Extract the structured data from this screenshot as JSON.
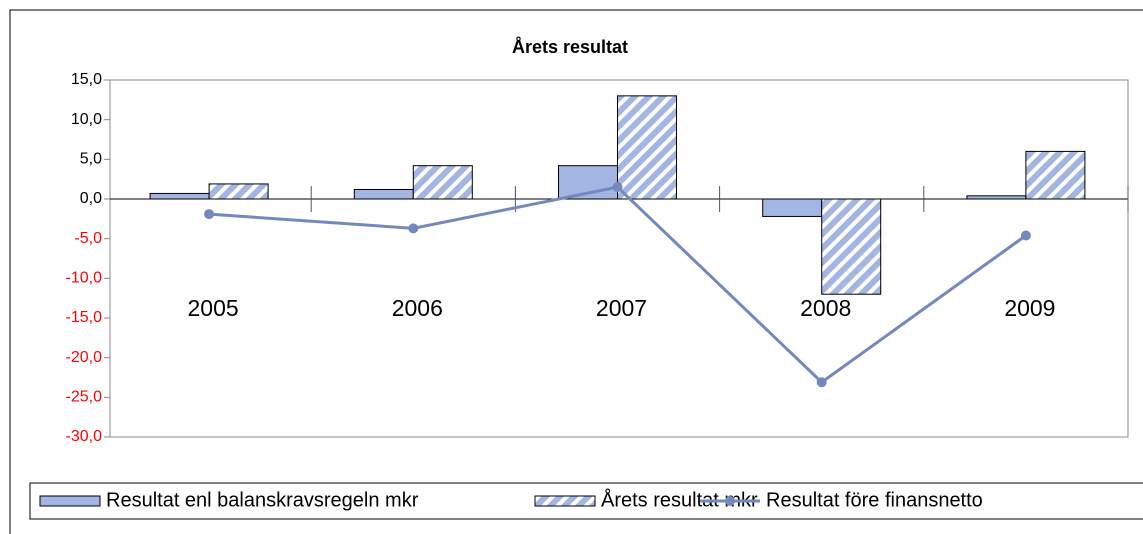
{
  "chart_data": {
    "type": "bar",
    "title": "Årets resultat",
    "categories": [
      "2005",
      "2006",
      "2007",
      "2008",
      "2009"
    ],
    "series": [
      {
        "name": "Resultat enl balanskravsregeln mkr",
        "type": "bar",
        "color": "#a3b5e3",
        "values": [
          0.7,
          1.2,
          4.2,
          -2.2,
          0.4
        ]
      },
      {
        "name": "Årets resultat mkr",
        "type": "bar",
        "hatch": true,
        "color": "#a3b5e3",
        "values": [
          1.9,
          4.2,
          13.0,
          -12.0,
          6.0
        ]
      },
      {
        "name": "Resultat före finansnetto",
        "type": "line",
        "color": "#7389bd",
        "values": [
          -1.9,
          -3.7,
          1.5,
          -23.1,
          -4.6
        ]
      }
    ],
    "ylim": [
      -30,
      15
    ],
    "yticks": [
      {
        "value": 15,
        "label": "15,0"
      },
      {
        "value": 10,
        "label": "10,0"
      },
      {
        "value": 5,
        "label": "5,0"
      },
      {
        "value": 0,
        "label": "0,0"
      },
      {
        "value": -5,
        "label": "-5,0"
      },
      {
        "value": -10,
        "label": "-10,0"
      },
      {
        "value": -15,
        "label": "-15,0"
      },
      {
        "value": -20,
        "label": "-20,0"
      },
      {
        "value": -25,
        "label": "-25,0"
      },
      {
        "value": -30,
        "label": "-30,0"
      }
    ],
    "negative_tick_color": "#ff0000",
    "grid": false,
    "legend": "bottom"
  }
}
